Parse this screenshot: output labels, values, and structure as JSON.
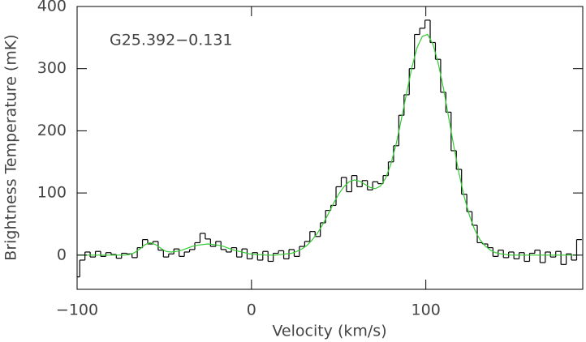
{
  "chart_data": {
    "type": "line",
    "annotation": "G25.392−0.131",
    "x_label": "Velocity (km/s)",
    "y_label": "Brightness Temperature (mK)",
    "xlim": [
      -100,
      190
    ],
    "ylim": [
      -55,
      400
    ],
    "xticks": [
      {
        "value": -100,
        "label": "−100"
      },
      0,
      100
    ],
    "yticks": [
      0,
      100,
      200,
      300,
      400
    ],
    "x": [
      -100,
      -97,
      -94,
      -91,
      -88,
      -85,
      -82,
      -79,
      -76,
      -73,
      -70,
      -67,
      -64,
      -61,
      -58,
      -55,
      -52,
      -49,
      -46,
      -43,
      -40,
      -37,
      -34,
      -31,
      -28,
      -25,
      -22,
      -19,
      -16,
      -13,
      -10,
      -7,
      -4,
      -1,
      2,
      5,
      8,
      11,
      14,
      17,
      20,
      23,
      26,
      29,
      32,
      35,
      38,
      41,
      44,
      47,
      50,
      53,
      56,
      59,
      62,
      65,
      68,
      71,
      74,
      77,
      80,
      83,
      86,
      89,
      92,
      95,
      98,
      101,
      104,
      107,
      110,
      113,
      116,
      119,
      122,
      125,
      128,
      131,
      134,
      137,
      140,
      143,
      146,
      149,
      152,
      155,
      158,
      161,
      164,
      167,
      170,
      173,
      176,
      179,
      182,
      185,
      188
    ],
    "series": [
      {
        "color": "#000000",
        "drawstyle": "steps-mid",
        "values": [
          -35,
          -8,
          5,
          -3,
          6,
          -2,
          4,
          1,
          -5,
          3,
          2,
          -4,
          12,
          25,
          18,
          22,
          8,
          -3,
          2,
          10,
          -2,
          5,
          9,
          20,
          35,
          26,
          14,
          22,
          9,
          5,
          12,
          -3,
          10,
          -6,
          4,
          -8,
          6,
          -10,
          3,
          7,
          -6,
          9,
          -2,
          14,
          22,
          38,
          30,
          52,
          72,
          80,
          110,
          125,
          102,
          128,
          110,
          120,
          105,
          118,
          115,
          128,
          150,
          176,
          225,
          258,
          300,
          355,
          365,
          378,
          342,
          315,
          262,
          230,
          168,
          138,
          98,
          70,
          48,
          20,
          18,
          12,
          -2,
          8,
          -4,
          5,
          -6,
          4,
          -10,
          3,
          8,
          -12,
          5,
          -3,
          6,
          -15,
          2,
          -8,
          25
        ]
      },
      {
        "color": "#33cc33",
        "drawstyle": "default",
        "values": [
          0,
          0,
          0,
          0,
          0,
          0,
          0,
          0,
          0,
          0,
          1,
          4,
          10,
          17,
          20,
          17,
          11,
          6,
          5,
          6,
          8,
          11,
          14,
          16,
          17,
          18,
          17,
          16,
          14,
          11,
          8,
          6,
          4,
          2,
          1,
          1,
          0,
          0,
          0,
          1,
          2,
          3,
          6,
          10,
          16,
          25,
          36,
          50,
          66,
          83,
          98,
          110,
          118,
          121,
          119,
          114,
          109,
          107,
          111,
          124,
          147,
          179,
          219,
          261,
          302,
          334,
          352,
          355,
          340,
          310,
          270,
          223,
          176,
          132,
          94,
          64,
          41,
          25,
          15,
          8,
          4,
          2,
          1,
          0,
          0,
          0,
          0,
          0,
          0,
          0,
          0,
          0,
          0,
          0,
          0,
          0,
          0
        ]
      }
    ]
  }
}
